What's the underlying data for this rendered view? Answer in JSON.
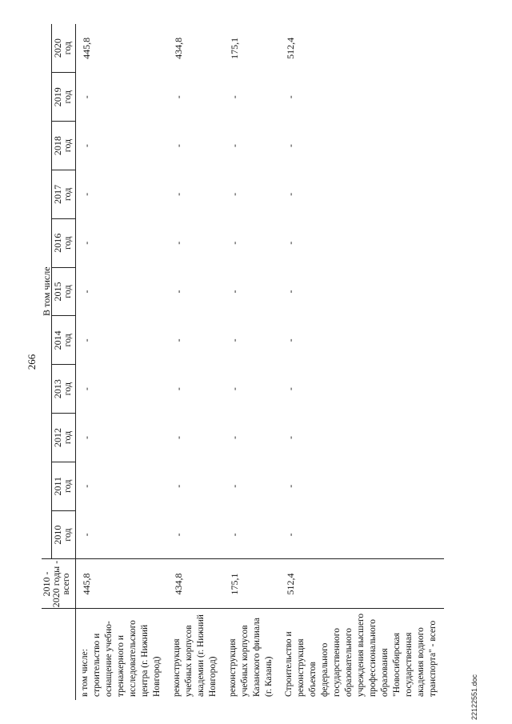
{
  "page_number": "266",
  "header": {
    "total_col": [
      "2010 -",
      "2020 годы -",
      "всего"
    ],
    "group_label": "В том числе",
    "years": [
      [
        "2010",
        "год"
      ],
      [
        "2011",
        "год"
      ],
      [
        "2012",
        "год"
      ],
      [
        "2013",
        "год"
      ],
      [
        "2014",
        "год"
      ],
      [
        "2015",
        "год"
      ],
      [
        "2016",
        "год"
      ],
      [
        "2017",
        "год"
      ],
      [
        "2018",
        "год"
      ],
      [
        "2019",
        "год"
      ],
      [
        "2020",
        "год"
      ]
    ]
  },
  "rows": [
    {
      "desc": "в том числе:\nстроительство и оснащение учебно-тренажерного и исследовательского центра (г. Нижний Новгород)",
      "total": "445,8",
      "years": [
        "-",
        "-",
        "-",
        "-",
        "-",
        "-",
        "-",
        "-",
        "-",
        "-",
        "445,8"
      ]
    },
    {
      "desc": "реконструкция учебных корпусов академии (г. Нижний Новгород)",
      "total": "434,8",
      "years": [
        "-",
        "-",
        "-",
        "-",
        "-",
        "-",
        "-",
        "-",
        "-",
        "-",
        "434,8"
      ]
    },
    {
      "desc": "реконструкция учебных корпусов Казанского филиала (г. Казань)",
      "total": "175,1",
      "years": [
        "-",
        "-",
        "-",
        "-",
        "-",
        "-",
        "-",
        "-",
        "-",
        "-",
        "175,1"
      ]
    },
    {
      "desc": "Строительство и реконструкция объектов федерального государственного образовательного учреждения высшего профессионального образования \"Новосибирская государственная академия водного транспорта\" - всего",
      "total": "512,4",
      "years": [
        "-",
        "-",
        "-",
        "-",
        "-",
        "-",
        "-",
        "-",
        "-",
        "-",
        "512,4"
      ]
    }
  ],
  "footer": "22122551.doc"
}
